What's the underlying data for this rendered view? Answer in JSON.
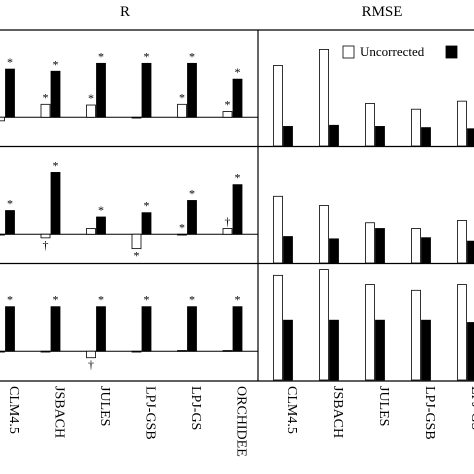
{
  "chart_data": [
    {
      "type": "bar",
      "title": "R",
      "ylim": [
        -0.4,
        1.2
      ],
      "categories": [
        "CLM4.5",
        "JSBACH",
        "JULES",
        "LPJ-GSB",
        "LPJ-GS",
        "ORCHIDEE"
      ],
      "panels": [
        {
          "series": [
            {
              "color": "#ffffff",
              "values": [
                -0.05,
                0.18,
                0.17,
                0.0,
                0.18,
                0.08
              ],
              "annotations": [
                null,
                "*",
                "*",
                null,
                "*",
                "*"
              ]
            },
            {
              "color": "#000000",
              "values": [
                0.67,
                0.64,
                0.75,
                0.75,
                0.75,
                0.53
              ],
              "annotations": [
                "*",
                "*",
                "*",
                "*",
                "*",
                "*"
              ]
            }
          ]
        },
        {
          "series": [
            {
              "color": "#ffffff",
              "values": [
                0.0,
                -0.05,
                0.08,
                -0.2,
                0.0,
                0.08
              ],
              "annotations": [
                null,
                "†",
                null,
                "*",
                "*",
                "†"
              ]
            },
            {
              "color": "#000000",
              "values": [
                0.33,
                0.86,
                0.24,
                0.3,
                0.47,
                0.69
              ],
              "annotations": [
                "*",
                "*",
                "*",
                "*",
                "*",
                "*"
              ]
            }
          ]
        },
        {
          "series": [
            {
              "color": "#ffffff",
              "values": [
                0.0,
                0.0,
                -0.09,
                0.0,
                0.01,
                0.01
              ],
              "annotations": [
                null,
                null,
                "†",
                null,
                null,
                null
              ]
            },
            {
              "color": "#000000",
              "values": [
                0.62,
                0.62,
                0.62,
                0.62,
                0.62,
                0.62
              ],
              "annotations": [
                "*",
                "*",
                "*",
                "*",
                "*",
                "*"
              ]
            }
          ]
        }
      ]
    },
    {
      "type": "bar",
      "title": "RMSE",
      "ylim": [
        0,
        1
      ],
      "categories": [
        "CLM4.5",
        "JSBACH",
        "JULES",
        "LPJ-GSB",
        "LPJ-GS"
      ],
      "legend": [
        {
          "name": "Uncorrected",
          "color": "#ffffff"
        },
        {
          "color": "#000000"
        }
      ],
      "panels": [
        {
          "series": [
            {
              "color": "#ffffff",
              "values": [
                0.7,
                0.84,
                0.37,
                0.32,
                0.39
              ]
            },
            {
              "color": "#000000",
              "values": [
                0.17,
                0.18,
                0.17,
                0.16,
                0.15
              ]
            }
          ]
        },
        {
          "series": [
            {
              "color": "#ffffff",
              "values": [
                0.58,
                0.5,
                0.35,
                0.3,
                0.37
              ]
            },
            {
              "color": "#000000",
              "values": [
                0.23,
                0.21,
                0.3,
                0.22,
                0.19
              ]
            }
          ]
        },
        {
          "series": [
            {
              "color": "#ffffff",
              "values": [
                0.91,
                0.96,
                0.83,
                0.78,
                0.83
              ]
            },
            {
              "color": "#000000",
              "values": [
                0.52,
                0.52,
                0.52,
                0.52,
                0.5
              ]
            }
          ]
        }
      ]
    }
  ]
}
